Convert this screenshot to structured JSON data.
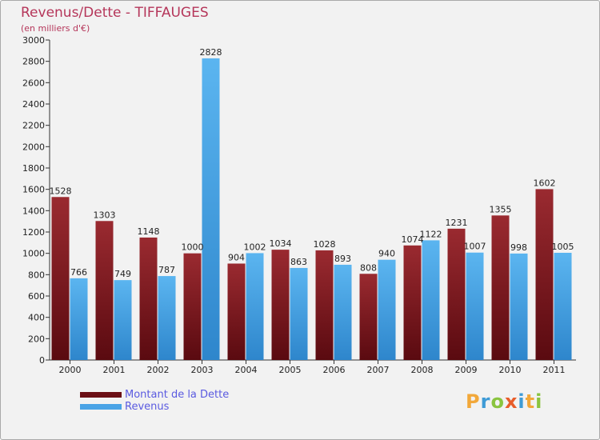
{
  "header": {
    "title": "Revenus/Dette - TIFFAUGES",
    "subtitle": "(en milliers d'€)"
  },
  "legend": {
    "items": [
      {
        "label": "Montant de la Dette",
        "color": "#7a1a20"
      },
      {
        "label": "Revenus",
        "color": "#4aa3e6"
      }
    ]
  },
  "logo": {
    "text": "Proxiti"
  },
  "chart_data": {
    "type": "bar",
    "categories": [
      "2000",
      "2001",
      "2002",
      "2003",
      "2004",
      "2005",
      "2006",
      "2007",
      "2008",
      "2009",
      "2010",
      "2011"
    ],
    "series": [
      {
        "name": "Montant de la Dette",
        "color": "#7a1a20",
        "values": [
          1528,
          1303,
          1148,
          1000,
          904,
          1034,
          1028,
          808,
          1074,
          1231,
          1355,
          1602
        ]
      },
      {
        "name": "Revenus",
        "color": "#4aa3e6",
        "values": [
          766,
          749,
          787,
          2828,
          1002,
          863,
          893,
          940,
          1122,
          1007,
          998,
          1005
        ]
      }
    ],
    "title": "Revenus/Dette - TIFFAUGES",
    "ylabel": "(en milliers d'€)",
    "ylim": [
      0,
      3000
    ],
    "yticks": [
      0,
      200,
      400,
      600,
      800,
      1000,
      1200,
      1400,
      1600,
      1800,
      2000,
      2200,
      2400,
      2600,
      2800,
      3000
    ],
    "grid": false,
    "legend_position": "bottom-left"
  }
}
